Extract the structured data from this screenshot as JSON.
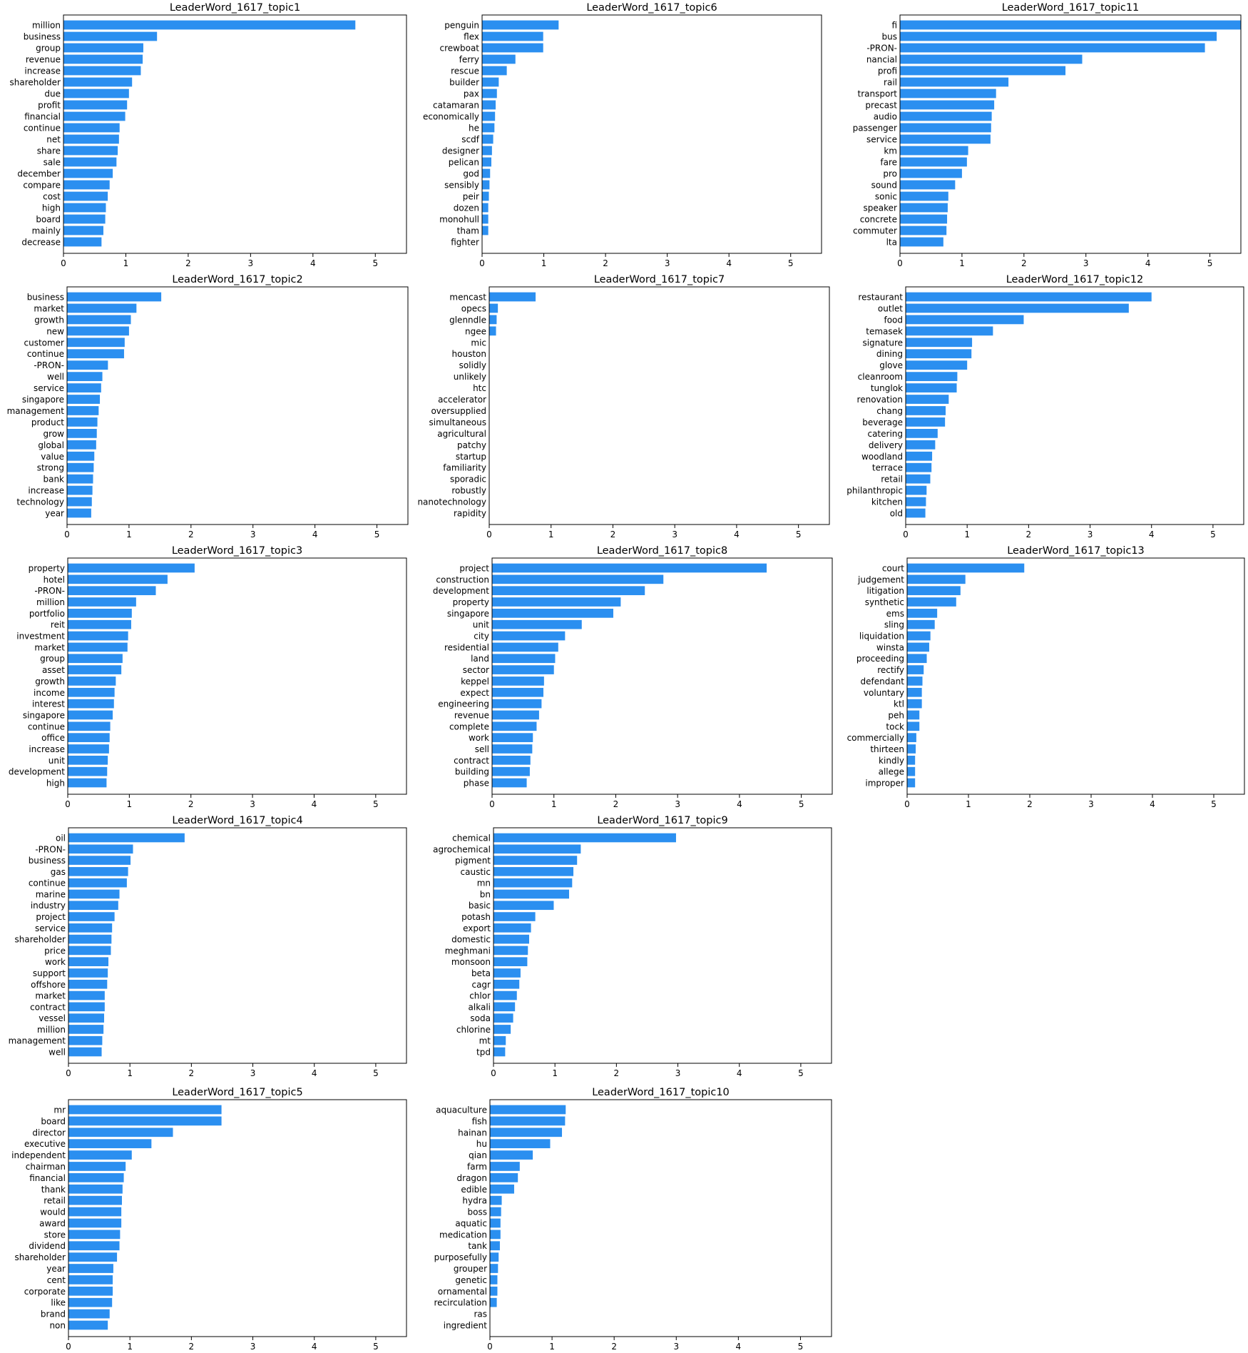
{
  "bar_color": "#2b8ff0",
  "chart_data": [
    {
      "type": "bar",
      "orientation": "horizontal",
      "title": "LeaderWord_1617_topic1",
      "xlim": [
        0,
        5.5
      ],
      "ticks": [
        0,
        1,
        2,
        3,
        4,
        5
      ],
      "categories": [
        "million",
        "business",
        "group",
        "revenue",
        "increase",
        "shareholder",
        "due",
        "profit",
        "financial",
        "continue",
        "net",
        "share",
        "sale",
        "december",
        "compare",
        "cost",
        "high",
        "board",
        "mainly",
        "decrease"
      ],
      "values": [
        4.68,
        1.5,
        1.28,
        1.27,
        1.24,
        1.1,
        1.05,
        1.02,
        0.99,
        0.9,
        0.89,
        0.87,
        0.85,
        0.79,
        0.74,
        0.71,
        0.68,
        0.67,
        0.64,
        0.61
      ]
    },
    {
      "type": "bar",
      "orientation": "horizontal",
      "title": "LeaderWord_1617_topic6",
      "xlim": [
        0,
        5.5
      ],
      "ticks": [
        0,
        1,
        2,
        3,
        4,
        5
      ],
      "categories": [
        "penguin",
        "flex",
        "crewboat",
        "ferry",
        "rescue",
        "builder",
        "pax",
        "catamaran",
        "economically",
        "he",
        "scdf",
        "designer",
        "pelican",
        "god",
        "sensibly",
        "peir",
        "dozen",
        "monohull",
        "tham",
        "fighter"
      ],
      "values": [
        1.24,
        0.99,
        0.99,
        0.54,
        0.4,
        0.27,
        0.24,
        0.22,
        0.21,
        0.2,
        0.18,
        0.16,
        0.15,
        0.13,
        0.12,
        0.11,
        0.1,
        0.1,
        0.1,
        0.0
      ]
    },
    {
      "type": "bar",
      "orientation": "horizontal",
      "title": "LeaderWord_1617_topic11",
      "xlim": [
        0,
        5.5
      ],
      "ticks": [
        0,
        1,
        2,
        3,
        4,
        5
      ],
      "categories": [
        "fi",
        "bus",
        "-PRON-",
        "nancial",
        "profi",
        "rail",
        "transport",
        "precast",
        "audio",
        "passenger",
        "service",
        "km",
        "fare",
        "pro",
        "sound",
        "sonic",
        "speaker",
        "concrete",
        "commuter",
        "lta"
      ],
      "values": [
        5.5,
        5.11,
        4.92,
        2.94,
        2.67,
        1.75,
        1.55,
        1.52,
        1.48,
        1.47,
        1.46,
        1.1,
        1.08,
        1.0,
        0.89,
        0.78,
        0.77,
        0.76,
        0.75,
        0.7
      ]
    },
    {
      "type": "bar",
      "orientation": "horizontal",
      "title": "LeaderWord_1617_topic2",
      "xlim": [
        0,
        5.5
      ],
      "ticks": [
        0,
        1,
        2,
        3,
        4,
        5
      ],
      "categories": [
        "business",
        "market",
        "growth",
        "new",
        "customer",
        "continue",
        "-PRON-",
        "well",
        "service",
        "singapore",
        "management",
        "product",
        "grow",
        "global",
        "value",
        "strong",
        "bank",
        "increase",
        "technology",
        "year"
      ],
      "values": [
        1.52,
        1.12,
        1.03,
        1.0,
        0.93,
        0.92,
        0.66,
        0.57,
        0.55,
        0.53,
        0.51,
        0.49,
        0.48,
        0.47,
        0.44,
        0.43,
        0.42,
        0.41,
        0.4,
        0.39
      ]
    },
    {
      "type": "bar",
      "orientation": "horizontal",
      "title": "LeaderWord_1617_topic7",
      "xlim": [
        0,
        5.5
      ],
      "ticks": [
        0,
        1,
        2,
        3,
        4,
        5
      ],
      "categories": [
        "mencast",
        "opecs",
        "glenndle",
        "ngee",
        "mic",
        "houston",
        "solidly",
        "unlikely",
        "htc",
        "accelerator",
        "oversupplied",
        "simultaneous",
        "agricultural",
        "patchy",
        "startup",
        "familiarity",
        "sporadic",
        "robustly",
        "nanotechnology",
        "rapidity"
      ],
      "values": [
        0.75,
        0.14,
        0.12,
        0.11,
        0.0,
        0.0,
        0.0,
        0.0,
        0.0,
        0.0,
        0.0,
        0.0,
        0.0,
        0.0,
        0.0,
        0.0,
        0.0,
        0.0,
        0.0,
        0.0
      ]
    },
    {
      "type": "bar",
      "orientation": "horizontal",
      "title": "LeaderWord_1617_topic12",
      "xlim": [
        0,
        5.5
      ],
      "ticks": [
        0,
        1,
        2,
        3,
        4,
        5
      ],
      "categories": [
        "restaurant",
        "outlet",
        "food",
        "temasek",
        "signature",
        "dining",
        "glove",
        "cleanroom",
        "tunglok",
        "renovation",
        "chang",
        "beverage",
        "catering",
        "delivery",
        "woodland",
        "terrace",
        "retail",
        "philanthropic",
        "kitchen",
        "old"
      ],
      "values": [
        4.0,
        3.63,
        1.92,
        1.42,
        1.08,
        1.07,
        1.0,
        0.84,
        0.83,
        0.7,
        0.65,
        0.64,
        0.52,
        0.48,
        0.43,
        0.42,
        0.4,
        0.34,
        0.33,
        0.32
      ]
    },
    {
      "type": "bar",
      "orientation": "horizontal",
      "title": "LeaderWord_1617_topic3",
      "xlim": [
        0,
        5.5
      ],
      "ticks": [
        0,
        1,
        2,
        3,
        4,
        5
      ],
      "categories": [
        "property",
        "hotel",
        "-PRON-",
        "million",
        "portfolio",
        "reit",
        "investment",
        "market",
        "group",
        "asset",
        "growth",
        "income",
        "interest",
        "singapore",
        "continue",
        "office",
        "increase",
        "unit",
        "development",
        "high"
      ],
      "values": [
        2.06,
        1.62,
        1.43,
        1.11,
        1.04,
        1.03,
        0.98,
        0.97,
        0.89,
        0.87,
        0.78,
        0.76,
        0.75,
        0.73,
        0.69,
        0.68,
        0.67,
        0.65,
        0.64,
        0.63
      ]
    },
    {
      "type": "bar",
      "orientation": "horizontal",
      "title": "LeaderWord_1617_topic8",
      "xlim": [
        0,
        5.5
      ],
      "ticks": [
        0,
        1,
        2,
        3,
        4,
        5
      ],
      "categories": [
        "project",
        "construction",
        "development",
        "property",
        "singapore",
        "unit",
        "city",
        "residential",
        "land",
        "sector",
        "keppel",
        "expect",
        "engineering",
        "revenue",
        "complete",
        "work",
        "sell",
        "contract",
        "building",
        "phase"
      ],
      "values": [
        4.44,
        2.77,
        2.47,
        2.08,
        1.96,
        1.45,
        1.18,
        1.07,
        1.02,
        1.0,
        0.84,
        0.83,
        0.8,
        0.76,
        0.72,
        0.66,
        0.65,
        0.62,
        0.61,
        0.56
      ]
    },
    {
      "type": "bar",
      "orientation": "horizontal",
      "title": "LeaderWord_1617_topic13",
      "xlim": [
        0,
        5.5
      ],
      "ticks": [
        0,
        1,
        2,
        3,
        4,
        5
      ],
      "categories": [
        "court",
        "judgement",
        "litigation",
        "synthetic",
        "ems",
        "sling",
        "liquidation",
        "winsta",
        "proceeding",
        "rectify",
        "defendant",
        "voluntary",
        "ktl",
        "peh",
        "tock",
        "commercially",
        "thirteen",
        "kindly",
        "allege",
        "improper"
      ],
      "values": [
        1.91,
        0.95,
        0.87,
        0.8,
        0.49,
        0.45,
        0.38,
        0.36,
        0.32,
        0.27,
        0.25,
        0.24,
        0.24,
        0.2,
        0.2,
        0.15,
        0.14,
        0.13,
        0.13,
        0.13
      ]
    },
    {
      "type": "bar",
      "orientation": "horizontal",
      "title": "LeaderWord_1617_topic4",
      "xlim": [
        0,
        5.5
      ],
      "ticks": [
        0,
        1,
        2,
        3,
        4,
        5
      ],
      "categories": [
        "oil",
        "-PRON-",
        "business",
        "gas",
        "continue",
        "marine",
        "industry",
        "project",
        "service",
        "shareholder",
        "price",
        "work",
        "support",
        "offshore",
        "market",
        "contract",
        "vessel",
        "million",
        "management",
        "well"
      ],
      "values": [
        1.89,
        1.05,
        1.01,
        0.97,
        0.95,
        0.83,
        0.81,
        0.75,
        0.71,
        0.7,
        0.69,
        0.65,
        0.64,
        0.63,
        0.59,
        0.59,
        0.58,
        0.57,
        0.55,
        0.54
      ]
    },
    {
      "type": "bar",
      "orientation": "horizontal",
      "title": "LeaderWord_1617_topic9",
      "xlim": [
        0,
        5.5
      ],
      "ticks": [
        0,
        1,
        2,
        3,
        4,
        5
      ],
      "categories": [
        "chemical",
        "agrochemical",
        "pigment",
        "caustic",
        "mn",
        "bn",
        "basic",
        "potash",
        "export",
        "domestic",
        "meghmani",
        "monsoon",
        "beta",
        "cagr",
        "chlor",
        "alkali",
        "soda",
        "chlorine",
        "mt",
        "tpd"
      ],
      "values": [
        2.97,
        1.42,
        1.36,
        1.3,
        1.28,
        1.23,
        0.98,
        0.68,
        0.61,
        0.58,
        0.56,
        0.55,
        0.44,
        0.42,
        0.38,
        0.35,
        0.32,
        0.28,
        0.2,
        0.19
      ]
    },
    {
      "type": "bar",
      "orientation": "horizontal",
      "title": "LeaderWord_1617_topic5",
      "xlim": [
        0,
        5.5
      ],
      "ticks": [
        0,
        1,
        2,
        3,
        4,
        5
      ],
      "categories": [
        "mr",
        "board",
        "director",
        "executive",
        "independent",
        "chairman",
        "financial",
        "thank",
        "retail",
        "would",
        "award",
        "store",
        "dividend",
        "shareholder",
        "year",
        "cent",
        "corporate",
        "like",
        "brand",
        "non"
      ],
      "values": [
        2.49,
        2.49,
        1.7,
        1.35,
        1.03,
        0.93,
        0.9,
        0.88,
        0.87,
        0.86,
        0.86,
        0.84,
        0.83,
        0.79,
        0.73,
        0.72,
        0.72,
        0.71,
        0.67,
        0.64
      ]
    },
    {
      "type": "bar",
      "orientation": "horizontal",
      "title": "LeaderWord_1617_topic10",
      "xlim": [
        0,
        5.5
      ],
      "ticks": [
        0,
        1,
        2,
        3,
        4,
        5
      ],
      "categories": [
        "aquaculture",
        "fish",
        "hainan",
        "hu",
        "qian",
        "farm",
        "dragon",
        "edible",
        "hydra",
        "boss",
        "aquatic",
        "medication",
        "tank",
        "purposefully",
        "grouper",
        "genetic",
        "ornamental",
        "recirculation",
        "ras",
        "ingredient"
      ],
      "values": [
        1.22,
        1.21,
        1.16,
        0.97,
        0.69,
        0.48,
        0.45,
        0.39,
        0.19,
        0.18,
        0.17,
        0.17,
        0.16,
        0.14,
        0.13,
        0.12,
        0.12,
        0.11,
        0.0,
        0.0
      ]
    }
  ]
}
